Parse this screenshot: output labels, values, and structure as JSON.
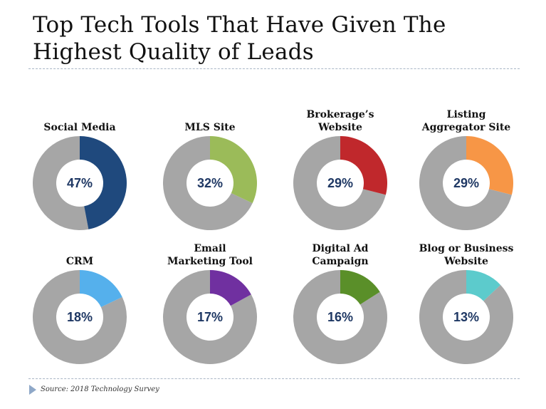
{
  "title": {
    "line1": "Top Tech Tools That Have Given The",
    "line2": "Highest Quality of Leads"
  },
  "source": "Source: 2018 Technology Survey",
  "colors": {
    "remainder": "#a6a6a6",
    "percent_text": "#1f3864"
  },
  "chart_data": {
    "type": "pie",
    "subtype": "donut-grid",
    "title": "Top Tech Tools That Have Given The Highest Quality of Leads",
    "charts": [
      {
        "label": "Social Media",
        "value": 47,
        "display": "47%",
        "color": "#1f497d"
      },
      {
        "label": "MLS Site",
        "value": 32,
        "display": "32%",
        "color": "#9bbb59"
      },
      {
        "label": "Brokerage’s\nWebsite",
        "value": 29,
        "display": "29%",
        "color": "#c0282c"
      },
      {
        "label": "Listing\nAggregator Site",
        "value": 29,
        "display": "29%",
        "color": "#f79646"
      },
      {
        "label": "CRM",
        "value": 18,
        "display": "18%",
        "color": "#55b0ec"
      },
      {
        "label": "Email\nMarketing Tool",
        "value": 17,
        "display": "17%",
        "color": "#7030a0"
      },
      {
        "label": "Digital Ad\nCampaign",
        "value": 16,
        "display": "16%",
        "color": "#5a8f29"
      },
      {
        "label": "Blog or Business\nWebsite",
        "value": 13,
        "display": "13%",
        "color": "#5ccbcc"
      }
    ]
  }
}
